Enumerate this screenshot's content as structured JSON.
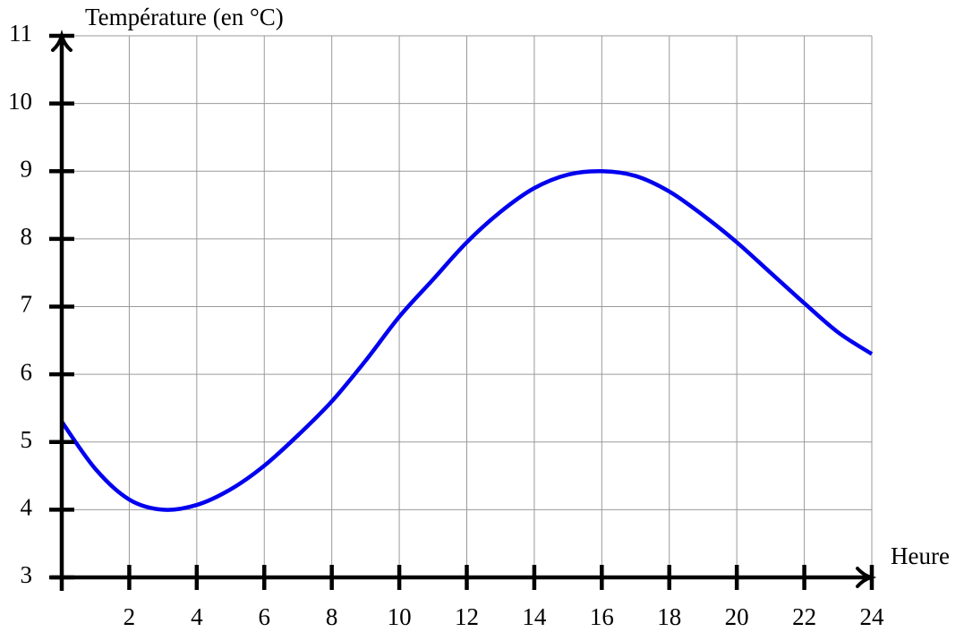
{
  "chart_data": {
    "type": "line",
    "y_label": "Température (en °C)",
    "x_label": "Heure",
    "x": [
      0,
      1,
      2,
      3,
      4,
      5,
      6,
      7,
      8,
      9,
      10,
      11,
      12,
      13,
      14,
      15,
      16,
      17,
      18,
      19,
      20,
      21,
      22,
      23,
      24
    ],
    "series": [
      {
        "color": "#0000ee",
        "values": [
          5.3,
          4.6,
          4.15,
          4.0,
          4.07,
          4.3,
          4.65,
          5.1,
          5.6,
          6.2,
          6.85,
          7.4,
          7.95,
          8.4,
          8.75,
          8.95,
          9.0,
          8.93,
          8.7,
          8.35,
          7.95,
          7.5,
          7.05,
          6.62,
          6.3
        ]
      }
    ],
    "xlim": [
      0,
      24
    ],
    "xticks": [
      2,
      4,
      6,
      8,
      10,
      12,
      14,
      16,
      18,
      20,
      22,
      24
    ],
    "ylim": [
      3,
      11
    ],
    "yticks": [
      3,
      4,
      5,
      6,
      7,
      8,
      9,
      10,
      11
    ],
    "grid": true
  }
}
